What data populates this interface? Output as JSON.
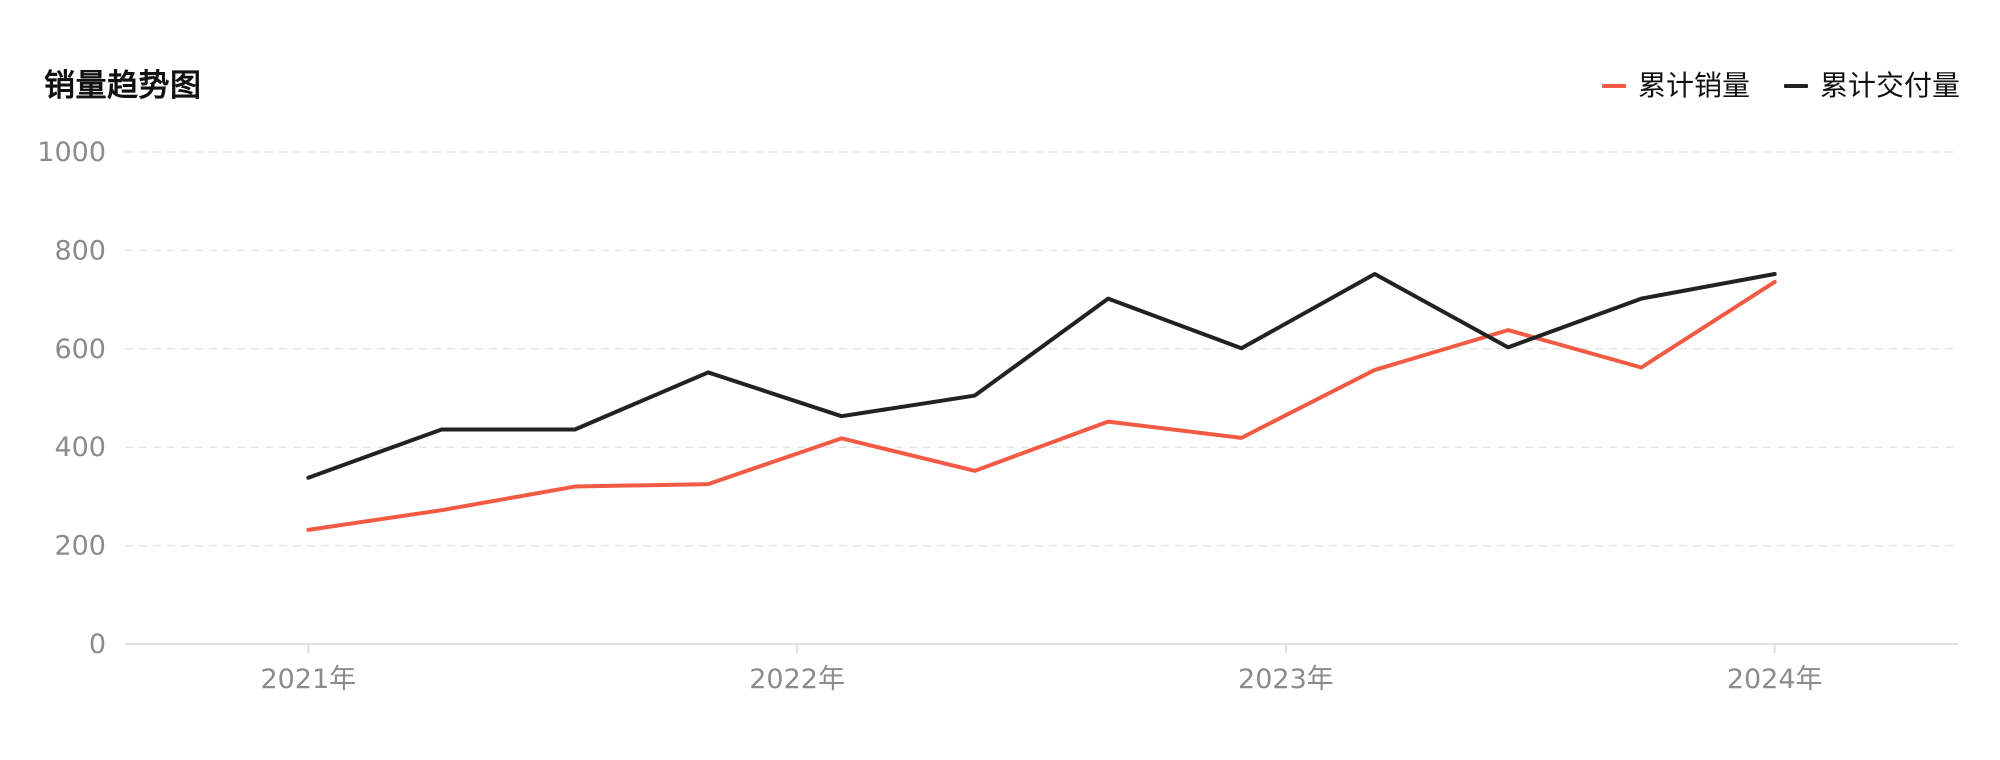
{
  "page": {
    "title": "销量趋势图"
  },
  "legend": {
    "items": [
      {
        "label": "累计销量",
        "color": "#f25a43"
      },
      {
        "label": "累计交付量",
        "color": "#222222"
      }
    ]
  },
  "chart_data": {
    "type": "line",
    "title": "销量趋势图",
    "xlabel": "",
    "ylabel": "",
    "ylim": [
      0,
      1000
    ],
    "yticks": [
      0,
      200,
      400,
      600,
      800,
      1000
    ],
    "x_tick_labels": [
      "2021年",
      "2022年",
      "2023年",
      "2024年"
    ],
    "x_tick_positions": [
      0,
      1,
      2,
      3
    ],
    "x": [
      0,
      0.2727,
      0.5454,
      0.8181,
      1.0909,
      1.3636,
      1.6363,
      1.909,
      2.1818,
      2.4545,
      2.7272,
      3.0
    ],
    "grid": true,
    "legend_position": "top-right",
    "series": [
      {
        "name": "累计销量",
        "color": "#f25a43",
        "values": [
          232,
          272,
          320,
          325,
          418,
          352,
          452,
          419,
          557,
          638,
          562,
          736
        ]
      },
      {
        "name": "累计交付量",
        "color": "#222222",
        "values": [
          338,
          436,
          436,
          552,
          463,
          505,
          702,
          601,
          752,
          603,
          702,
          752
        ]
      }
    ]
  }
}
